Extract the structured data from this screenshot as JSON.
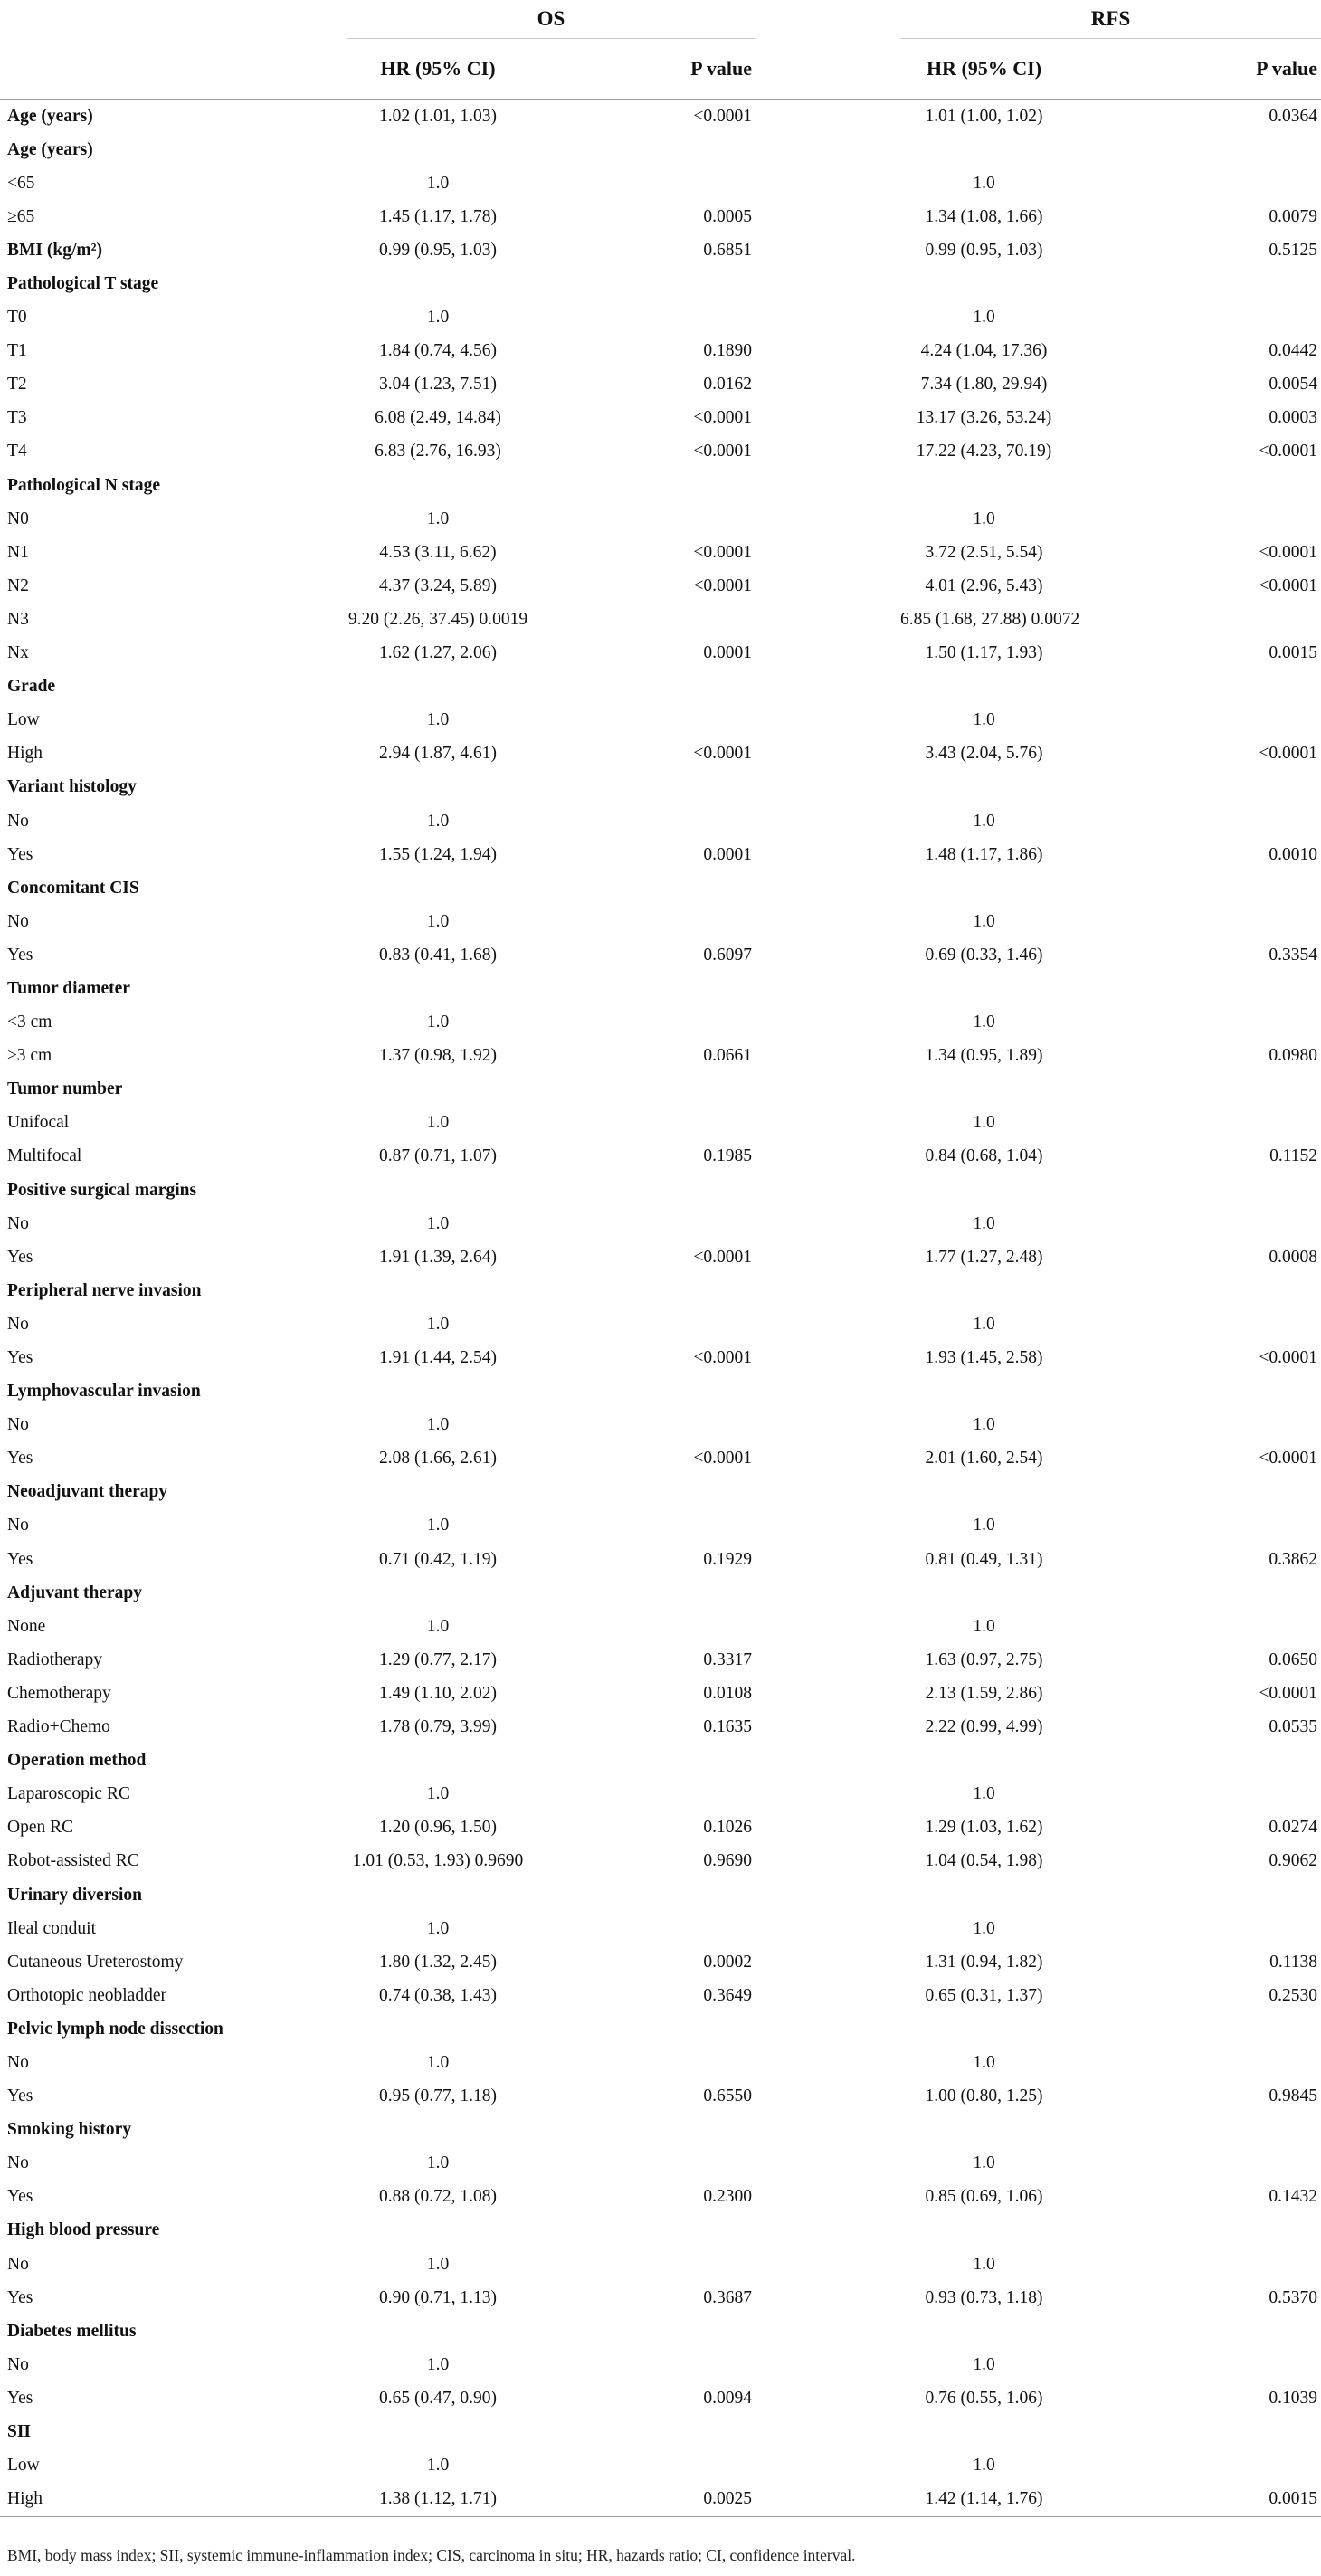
{
  "header": {
    "group_os": "OS",
    "group_rfs": "RFS",
    "os_hr": "HR (95% CI)",
    "os_p": "P value",
    "rfs_hr": "HR (95% CI)",
    "rfs_p": "P value"
  },
  "rows": [
    {
      "var": "Age (years)",
      "section": true,
      "os_hr": "1.02 (1.01, 1.03)",
      "os_p": "<0.0001",
      "rfs_hr": "1.01 (1.00, 1.02)",
      "rfs_p": "0.0364"
    },
    {
      "var": "Age (years)",
      "section": true,
      "os_hr": "",
      "os_p": "",
      "rfs_hr": "",
      "rfs_p": ""
    },
    {
      "var": "<65",
      "section": false,
      "os_hr": "1.0",
      "os_p": "",
      "rfs_hr": "1.0",
      "rfs_p": ""
    },
    {
      "var": "≥65",
      "section": false,
      "os_hr": "1.45 (1.17, 1.78)",
      "os_p": "0.0005",
      "rfs_hr": "1.34 (1.08, 1.66)",
      "rfs_p": "0.0079"
    },
    {
      "var": "BMI (kg/m²)",
      "section": true,
      "os_hr": "0.99 (0.95, 1.03)",
      "os_p": "0.6851",
      "rfs_hr": "0.99 (0.95, 1.03)",
      "rfs_p": "0.5125"
    },
    {
      "var": "Pathological T stage",
      "section": true,
      "os_hr": "",
      "os_p": "",
      "rfs_hr": "",
      "rfs_p": ""
    },
    {
      "var": "T0",
      "section": false,
      "os_hr": "1.0",
      "os_p": "",
      "rfs_hr": "1.0",
      "rfs_p": ""
    },
    {
      "var": "T1",
      "section": false,
      "os_hr": "1.84 (0.74, 4.56)",
      "os_p": "0.1890",
      "rfs_hr": "4.24 (1.04, 17.36)",
      "rfs_p": "0.0442"
    },
    {
      "var": "T2",
      "section": false,
      "os_hr": "3.04 (1.23, 7.51)",
      "os_p": "0.0162",
      "rfs_hr": "7.34 (1.80, 29.94)",
      "rfs_p": "0.0054"
    },
    {
      "var": "T3",
      "section": false,
      "os_hr": "6.08 (2.49, 14.84)",
      "os_p": "<0.0001",
      "rfs_hr": "13.17 (3.26, 53.24)",
      "rfs_p": "0.0003"
    },
    {
      "var": "T4",
      "section": false,
      "os_hr": "6.83 (2.76, 16.93)",
      "os_p": "<0.0001",
      "rfs_hr": "17.22 (4.23, 70.19)",
      "rfs_p": "<0.0001"
    },
    {
      "var": "Pathological N stage",
      "section": true,
      "os_hr": "",
      "os_p": "",
      "rfs_hr": "",
      "rfs_p": ""
    },
    {
      "var": "N0",
      "section": false,
      "os_hr": "1.0",
      "os_p": "",
      "rfs_hr": "1.0",
      "rfs_p": ""
    },
    {
      "var": "N1",
      "section": false,
      "os_hr": "4.53 (3.11, 6.62)",
      "os_p": "<0.0001",
      "rfs_hr": "3.72 (2.51, 5.54)",
      "rfs_p": "<0.0001"
    },
    {
      "var": "N2",
      "section": false,
      "os_hr": "4.37 (3.24, 5.89)",
      "os_p": "<0.0001",
      "rfs_hr": "4.01 (2.96, 5.43)",
      "rfs_p": "<0.0001"
    },
    {
      "var": "N3",
      "section": false,
      "os_hr": "9.20 (2.26, 37.45) 0.0019",
      "os_p": "",
      "rfs_hr": "6.85 (1.68, 27.88) 0.0072",
      "rfs_p": ""
    },
    {
      "var": "Nx",
      "section": false,
      "os_hr": "1.62 (1.27, 2.06)",
      "os_p": "0.0001",
      "rfs_hr": "1.50 (1.17, 1.93)",
      "rfs_p": "0.0015"
    },
    {
      "var": "Grade",
      "section": true,
      "os_hr": "",
      "os_p": "",
      "rfs_hr": "",
      "rfs_p": ""
    },
    {
      "var": "Low",
      "section": false,
      "os_hr": "1.0",
      "os_p": "",
      "rfs_hr": "1.0",
      "rfs_p": ""
    },
    {
      "var": "High",
      "section": false,
      "os_hr": "2.94 (1.87, 4.61)",
      "os_p": "<0.0001",
      "rfs_hr": "3.43 (2.04, 5.76)",
      "rfs_p": "<0.0001"
    },
    {
      "var": "Variant histology",
      "section": true,
      "os_hr": "",
      "os_p": "",
      "rfs_hr": "",
      "rfs_p": ""
    },
    {
      "var": "No",
      "section": false,
      "os_hr": "1.0",
      "os_p": "",
      "rfs_hr": "1.0",
      "rfs_p": ""
    },
    {
      "var": "Yes",
      "section": false,
      "os_hr": "1.55 (1.24, 1.94)",
      "os_p": "0.0001",
      "rfs_hr": "1.48 (1.17, 1.86)",
      "rfs_p": "0.0010"
    },
    {
      "var": "Concomitant CIS",
      "section": true,
      "os_hr": "",
      "os_p": "",
      "rfs_hr": "",
      "rfs_p": ""
    },
    {
      "var": "No",
      "section": false,
      "os_hr": "1.0",
      "os_p": "",
      "rfs_hr": "1.0",
      "rfs_p": ""
    },
    {
      "var": "Yes",
      "section": false,
      "os_hr": "0.83 (0.41, 1.68)",
      "os_p": "0.6097",
      "rfs_hr": "0.69 (0.33, 1.46)",
      "rfs_p": "0.3354"
    },
    {
      "var": "Tumor diameter",
      "section": true,
      "os_hr": "",
      "os_p": "",
      "rfs_hr": "",
      "rfs_p": ""
    },
    {
      "var": "<3 cm",
      "section": false,
      "os_hr": "1.0",
      "os_p": "",
      "rfs_hr": "1.0",
      "rfs_p": ""
    },
    {
      "var": "≥3 cm",
      "section": false,
      "os_hr": "1.37 (0.98, 1.92)",
      "os_p": "0.0661",
      "rfs_hr": "1.34 (0.95, 1.89)",
      "rfs_p": "0.0980"
    },
    {
      "var": "Tumor number",
      "section": true,
      "os_hr": "",
      "os_p": "",
      "rfs_hr": "",
      "rfs_p": ""
    },
    {
      "var": "Unifocal",
      "section": false,
      "os_hr": "1.0",
      "os_p": "",
      "rfs_hr": "1.0",
      "rfs_p": ""
    },
    {
      "var": "Multifocal",
      "section": false,
      "os_hr": "0.87 (0.71, 1.07)",
      "os_p": "0.1985",
      "rfs_hr": "0.84 (0.68, 1.04)",
      "rfs_p": "0.1152"
    },
    {
      "var": "Positive surgical margins",
      "section": true,
      "os_hr": "",
      "os_p": "",
      "rfs_hr": "",
      "rfs_p": ""
    },
    {
      "var": "No",
      "section": false,
      "os_hr": "1.0",
      "os_p": "",
      "rfs_hr": "1.0",
      "rfs_p": ""
    },
    {
      "var": "Yes",
      "section": false,
      "os_hr": "1.91 (1.39, 2.64)",
      "os_p": "<0.0001",
      "rfs_hr": "1.77 (1.27, 2.48)",
      "rfs_p": "0.0008"
    },
    {
      "var": "Peripheral nerve invasion",
      "section": true,
      "os_hr": "",
      "os_p": "",
      "rfs_hr": "",
      "rfs_p": ""
    },
    {
      "var": "No",
      "section": false,
      "os_hr": "1.0",
      "os_p": "",
      "rfs_hr": "1.0",
      "rfs_p": ""
    },
    {
      "var": "Yes",
      "section": false,
      "os_hr": "1.91 (1.44, 2.54)",
      "os_p": "<0.0001",
      "rfs_hr": "1.93 (1.45, 2.58)",
      "rfs_p": "<0.0001"
    },
    {
      "var": "Lymphovascular invasion",
      "section": true,
      "os_hr": "",
      "os_p": "",
      "rfs_hr": "",
      "rfs_p": ""
    },
    {
      "var": "No",
      "section": false,
      "os_hr": "1.0",
      "os_p": "",
      "rfs_hr": "1.0",
      "rfs_p": ""
    },
    {
      "var": "Yes",
      "section": false,
      "os_hr": "2.08 (1.66, 2.61)",
      "os_p": "<0.0001",
      "rfs_hr": "2.01 (1.60, 2.54)",
      "rfs_p": "<0.0001"
    },
    {
      "var": "Neoadjuvant therapy",
      "section": true,
      "os_hr": "",
      "os_p": "",
      "rfs_hr": "",
      "rfs_p": ""
    },
    {
      "var": "No",
      "section": false,
      "os_hr": "1.0",
      "os_p": "",
      "rfs_hr": "1.0",
      "rfs_p": ""
    },
    {
      "var": "Yes",
      "section": false,
      "os_hr": "0.71 (0.42, 1.19)",
      "os_p": "0.1929",
      "rfs_hr": "0.81 (0.49, 1.31)",
      "rfs_p": "0.3862"
    },
    {
      "var": "Adjuvant therapy",
      "section": true,
      "os_hr": "",
      "os_p": "",
      "rfs_hr": "",
      "rfs_p": ""
    },
    {
      "var": "None",
      "section": false,
      "os_hr": "1.0",
      "os_p": "",
      "rfs_hr": "1.0",
      "rfs_p": ""
    },
    {
      "var": "Radiotherapy",
      "section": false,
      "os_hr": "1.29 (0.77, 2.17)",
      "os_p": "0.3317",
      "rfs_hr": "1.63 (0.97, 2.75)",
      "rfs_p": "0.0650"
    },
    {
      "var": "Chemotherapy",
      "section": false,
      "os_hr": "1.49 (1.10, 2.02)",
      "os_p": "0.0108",
      "rfs_hr": "2.13 (1.59, 2.86)",
      "rfs_p": "<0.0001"
    },
    {
      "var": "Radio+Chemo",
      "section": false,
      "os_hr": "1.78 (0.79, 3.99)",
      "os_p": "0.1635",
      "rfs_hr": "2.22 (0.99, 4.99)",
      "rfs_p": "0.0535"
    },
    {
      "var": "Operation method",
      "section": true,
      "os_hr": "",
      "os_p": "",
      "rfs_hr": "",
      "rfs_p": ""
    },
    {
      "var": "Laparoscopic RC",
      "section": false,
      "os_hr": "1.0",
      "os_p": "",
      "rfs_hr": "1.0",
      "rfs_p": ""
    },
    {
      "var": "Open RC",
      "section": false,
      "os_hr": "1.20 (0.96, 1.50)",
      "os_p": "0.1026",
      "rfs_hr": "1.29 (1.03, 1.62)",
      "rfs_p": "0.0274"
    },
    {
      "var": "Robot-assisted RC",
      "section": false,
      "os_hr": "1.01 (0.53, 1.93) 0.9690",
      "os_p": "0.9690",
      "rfs_hr": "1.04 (0.54, 1.98)",
      "rfs_p": "0.9062"
    },
    {
      "var": "Urinary diversion",
      "section": true,
      "os_hr": "",
      "os_p": "",
      "rfs_hr": "",
      "rfs_p": ""
    },
    {
      "var": "Ileal conduit",
      "section": false,
      "os_hr": "1.0",
      "os_p": "",
      "rfs_hr": "1.0",
      "rfs_p": ""
    },
    {
      "var": "Cutaneous Ureterostomy",
      "section": false,
      "os_hr": "1.80 (1.32, 2.45)",
      "os_p": "0.0002",
      "rfs_hr": "1.31 (0.94, 1.82)",
      "rfs_p": "0.1138"
    },
    {
      "var": "Orthotopic neobladder",
      "section": false,
      "os_hr": "0.74 (0.38, 1.43)",
      "os_p": "0.3649",
      "rfs_hr": "0.65 (0.31, 1.37)",
      "rfs_p": "0.2530"
    },
    {
      "var": "Pelvic lymph node dissection",
      "section": true,
      "os_hr": "",
      "os_p": "",
      "rfs_hr": "",
      "rfs_p": ""
    },
    {
      "var": "No",
      "section": false,
      "os_hr": "1.0",
      "os_p": "",
      "rfs_hr": "1.0",
      "rfs_p": ""
    },
    {
      "var": "Yes",
      "section": false,
      "os_hr": "0.95 (0.77, 1.18)",
      "os_p": "0.6550",
      "rfs_hr": "1.00 (0.80, 1.25)",
      "rfs_p": "0.9845"
    },
    {
      "var": "Smoking history",
      "section": true,
      "os_hr": "",
      "os_p": "",
      "rfs_hr": "",
      "rfs_p": ""
    },
    {
      "var": "No",
      "section": false,
      "os_hr": "1.0",
      "os_p": "",
      "rfs_hr": "1.0",
      "rfs_p": ""
    },
    {
      "var": "Yes",
      "section": false,
      "os_hr": "0.88 (0.72, 1.08)",
      "os_p": "0.2300",
      "rfs_hr": "0.85 (0.69, 1.06)",
      "rfs_p": "0.1432"
    },
    {
      "var": "High blood pressure",
      "section": true,
      "os_hr": "",
      "os_p": "",
      "rfs_hr": "",
      "rfs_p": ""
    },
    {
      "var": "No",
      "section": false,
      "os_hr": "1.0",
      "os_p": "",
      "rfs_hr": "1.0",
      "rfs_p": ""
    },
    {
      "var": "Yes",
      "section": false,
      "os_hr": "0.90 (0.71, 1.13)",
      "os_p": "0.3687",
      "rfs_hr": "0.93 (0.73, 1.18)",
      "rfs_p": "0.5370"
    },
    {
      "var": "Diabetes mellitus",
      "section": true,
      "os_hr": "",
      "os_p": "",
      "rfs_hr": "",
      "rfs_p": ""
    },
    {
      "var": "No",
      "section": false,
      "os_hr": "1.0",
      "os_p": "",
      "rfs_hr": "1.0",
      "rfs_p": ""
    },
    {
      "var": "Yes",
      "section": false,
      "os_hr": "0.65 (0.47, 0.90)",
      "os_p": "0.0094",
      "rfs_hr": "0.76 (0.55, 1.06)",
      "rfs_p": "0.1039"
    },
    {
      "var": "SII",
      "section": true,
      "os_hr": "",
      "os_p": "",
      "rfs_hr": "",
      "rfs_p": ""
    },
    {
      "var": "Low",
      "section": false,
      "os_hr": "1.0",
      "os_p": "",
      "rfs_hr": "1.0",
      "rfs_p": ""
    },
    {
      "var": "High",
      "section": false,
      "os_hr": "1.38 (1.12, 1.71)",
      "os_p": "0.0025",
      "rfs_hr": "1.42 (1.14, 1.76)",
      "rfs_p": "0.0015"
    }
  ],
  "footnote": "BMI, body mass index; SII, systemic immune-inflammation index; CIS, carcinoma in situ; HR, hazards ratio; CI, confidence interval."
}
